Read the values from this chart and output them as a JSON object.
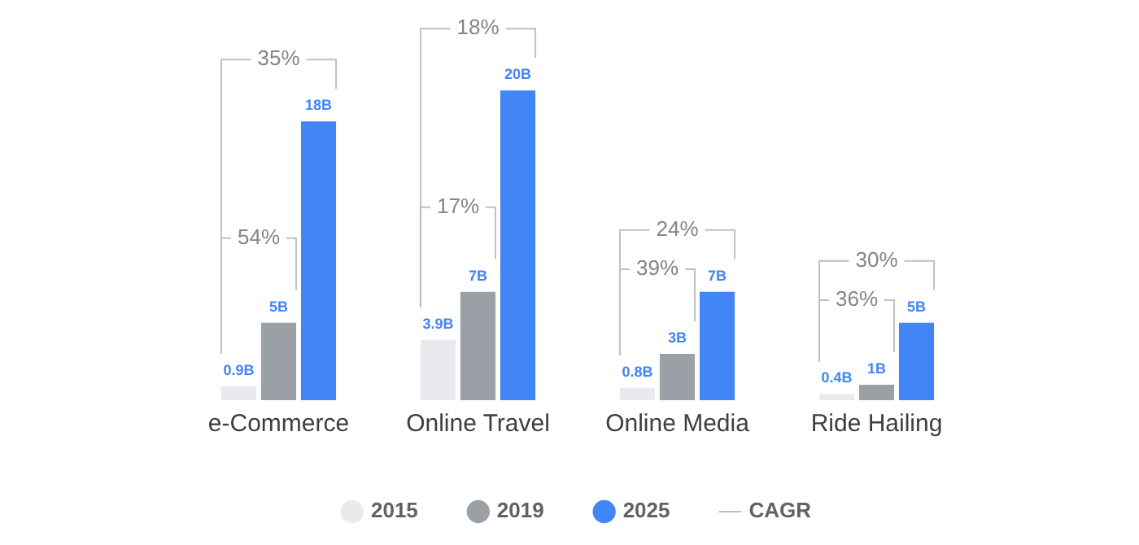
{
  "chart_data": {
    "type": "bar",
    "categories": [
      "e-Commerce",
      "Online Travel",
      "Online Media",
      "Ride Hailing"
    ],
    "series": [
      {
        "name": "2015",
        "color": "#e8eaed",
        "values": [
          0.9,
          3.9,
          0.8,
          0.4
        ],
        "value_labels": [
          "0.9B",
          "3.9B",
          "0.8B",
          "0.4B"
        ]
      },
      {
        "name": "2019",
        "color": "#9aa0a6",
        "values": [
          5,
          7,
          3,
          1
        ],
        "value_labels": [
          "5B",
          "7B",
          "3B",
          "1B"
        ]
      },
      {
        "name": "2025",
        "color": "#4285f4",
        "values": [
          18,
          20,
          7,
          5
        ],
        "value_labels": [
          "18B",
          "20B",
          "7B",
          "5B"
        ]
      }
    ],
    "annotations": [
      "35%",
      "54%",
      "18%",
      "17%",
      "24%",
      "39%",
      "30%",
      "36%",
      "CAGR"
    ],
    "legend": "bottom",
    "grid": false
  }
}
